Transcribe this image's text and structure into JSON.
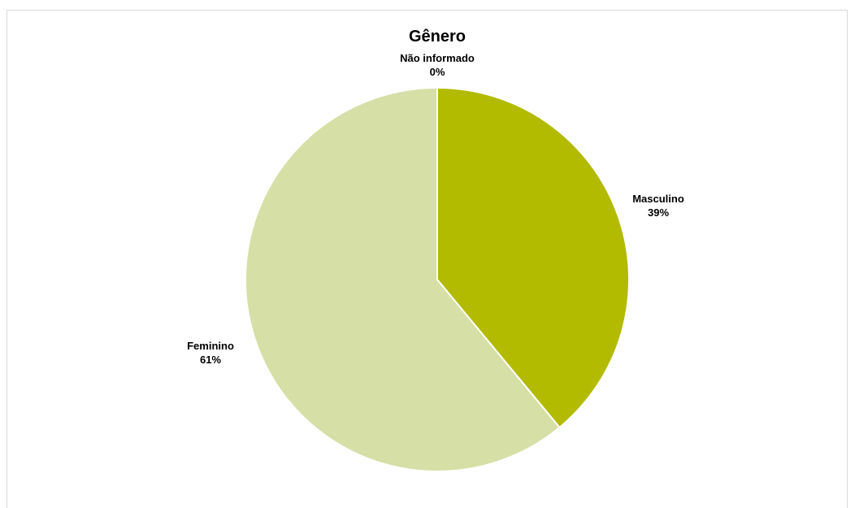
{
  "chart_data": {
    "type": "pie",
    "title": "Gênero",
    "categories": [
      "Não informado",
      "Masculino",
      "Feminino"
    ],
    "values": [
      0,
      39,
      61
    ],
    "labels": [
      "0%",
      "39%",
      "61%"
    ],
    "colors": [
      "#9aaa00",
      "#b2bb00",
      "#d6dfa6"
    ],
    "legend": "none",
    "start_angle": "12 o'clock",
    "direction": "clockwise"
  }
}
